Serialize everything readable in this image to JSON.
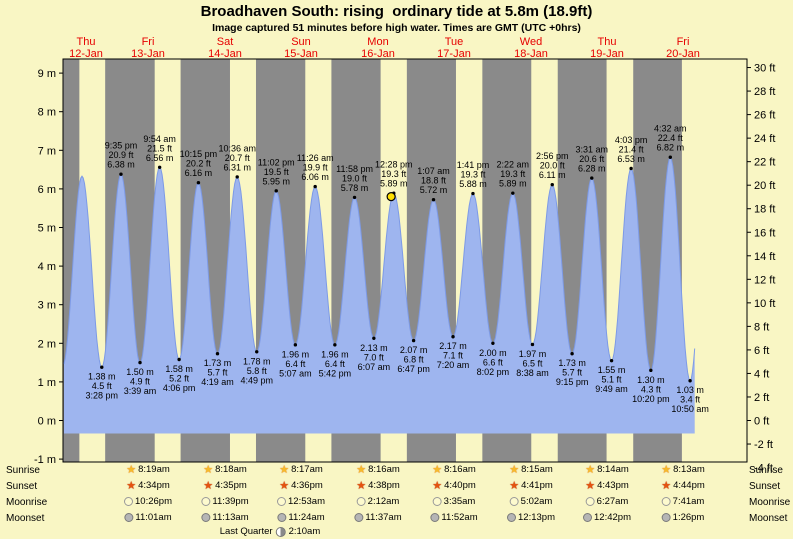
{
  "title": "Broadhaven South: rising  ordinary tide at 5.8m (18.9ft)",
  "subtitle": "Image captured 51 minutes before high water. Times are GMT (UTC +0hrs)",
  "colors": {
    "page_bg": "#f9f6c4",
    "day_band": "#f9f6c4",
    "night_band": "#8a8a8a",
    "tide_fill": "#9eb5ef",
    "tide_stroke": "#7d9ae6",
    "day_label": "#e60000",
    "current_marker": "#ffdf00"
  },
  "chart_data": {
    "type": "area",
    "title": "Broadhaven South tide height curve, Thu 12-Jan to Fri 20-Jan",
    "timezone": "GMT (UTC +0hrs)",
    "ylim": [
      -1.1,
      9.4
    ],
    "y_axis_left": {
      "unit": "m",
      "ticks": [
        9,
        8,
        7,
        6,
        5,
        4,
        3,
        2,
        1,
        0,
        -1
      ]
    },
    "y_axis_right": {
      "unit": "ft",
      "ticks": [
        30,
        28,
        26,
        24,
        22,
        20,
        18,
        16,
        14,
        12,
        10,
        8,
        6,
        4,
        2,
        0,
        -2,
        -4
      ]
    },
    "days": [
      {
        "name": "Thu",
        "date": "12-Jan"
      },
      {
        "name": "Fri",
        "date": "13-Jan"
      },
      {
        "name": "Sat",
        "date": "14-Jan"
      },
      {
        "name": "Sun",
        "date": "15-Jan"
      },
      {
        "name": "Mon",
        "date": "16-Jan"
      },
      {
        "name": "Tue",
        "date": "17-Jan"
      },
      {
        "name": "Wed",
        "date": "18-Jan"
      },
      {
        "name": "Thu",
        "date": "19-Jan"
      },
      {
        "name": "Fri",
        "date": "20-Jan"
      }
    ],
    "tide_events": [
      {
        "t": 3.05,
        "m": 1.42,
        "type": "low",
        "annotated": false
      },
      {
        "t": 9.17,
        "m": 6.33,
        "type": "high",
        "annotated": false
      },
      {
        "t": 15.47,
        "m": 1.38,
        "ft": 4.5,
        "time": "3:28 pm",
        "type": "low",
        "annotated": true
      },
      {
        "t": 21.58,
        "m": 6.38,
        "ft": 20.9,
        "time": "9:35 pm",
        "type": "high",
        "annotated": true
      },
      {
        "t": 27.65,
        "m": 1.5,
        "ft": 4.9,
        "time": "3:39 am",
        "type": "low",
        "annotated": true
      },
      {
        "t": 33.9,
        "m": 6.56,
        "ft": 21.5,
        "time": "9:54 am",
        "type": "high",
        "annotated": true
      },
      {
        "t": 40.1,
        "m": 1.58,
        "ft": 5.2,
        "time": "4:06 pm",
        "type": "low",
        "annotated": true
      },
      {
        "t": 46.25,
        "m": 6.16,
        "ft": 20.2,
        "time": "10:15 pm",
        "type": "high",
        "annotated": true
      },
      {
        "t": 52.32,
        "m": 1.73,
        "ft": 5.7,
        "time": "4:19 am",
        "type": "low",
        "annotated": true
      },
      {
        "t": 58.6,
        "m": 6.31,
        "ft": 20.7,
        "time": "10:36 am",
        "type": "high",
        "annotated": true
      },
      {
        "t": 64.82,
        "m": 1.78,
        "ft": 5.8,
        "time": "4:49 pm",
        "type": "low",
        "annotated": true
      },
      {
        "t": 71.03,
        "m": 5.95,
        "ft": 19.5,
        "time": "11:02 pm",
        "type": "high",
        "annotated": true
      },
      {
        "t": 77.12,
        "m": 1.96,
        "ft": 6.4,
        "time": "5:07 am",
        "type": "low",
        "annotated": true
      },
      {
        "t": 83.43,
        "m": 6.06,
        "ft": 19.9,
        "time": "11:26 am",
        "type": "high",
        "annotated": true
      },
      {
        "t": 89.7,
        "m": 1.96,
        "ft": 6.4,
        "time": "5:42 pm",
        "type": "low",
        "annotated": true
      },
      {
        "t": 95.97,
        "m": 5.78,
        "ft": 19.0,
        "time": "11:58 pm",
        "type": "high",
        "annotated": true
      },
      {
        "t": 102.12,
        "m": 2.13,
        "ft": 7.0,
        "time": "6:07 am",
        "type": "low",
        "annotated": true
      },
      {
        "t": 108.47,
        "m": 5.89,
        "ft": 19.3,
        "time": "12:28 pm",
        "type": "high",
        "annotated": true
      },
      {
        "t": 114.78,
        "m": 2.07,
        "ft": 6.8,
        "time": "6:47 pm",
        "type": "low",
        "annotated": true
      },
      {
        "t": 121.12,
        "m": 5.72,
        "ft": 18.8,
        "time": "1:07 am",
        "type": "high",
        "annotated": true
      },
      {
        "t": 127.33,
        "m": 2.17,
        "ft": 7.1,
        "time": "7:20 am",
        "type": "low",
        "annotated": true
      },
      {
        "t": 133.68,
        "m": 5.88,
        "ft": 19.3,
        "time": "1:41 pm",
        "type": "high",
        "annotated": true
      },
      {
        "t": 140.03,
        "m": 2.0,
        "ft": 6.6,
        "time": "8:02 pm",
        "type": "low",
        "annotated": true
      },
      {
        "t": 146.37,
        "m": 5.89,
        "ft": 19.3,
        "time": "2:22 am",
        "type": "high",
        "annotated": true
      },
      {
        "t": 152.63,
        "m": 1.97,
        "ft": 6.5,
        "time": "8:38 am",
        "type": "low",
        "annotated": true
      },
      {
        "t": 158.93,
        "m": 6.11,
        "ft": 20.0,
        "time": "2:56 pm",
        "type": "high",
        "annotated": true
      },
      {
        "t": 165.25,
        "m": 1.73,
        "ft": 5.7,
        "time": "9:15 pm",
        "type": "low",
        "annotated": true
      },
      {
        "t": 171.52,
        "m": 6.28,
        "ft": 20.6,
        "time": "3:31 am",
        "type": "high",
        "annotated": true
      },
      {
        "t": 177.82,
        "m": 1.55,
        "ft": 5.1,
        "time": "9:49 am",
        "type": "low",
        "annotated": true
      },
      {
        "t": 184.05,
        "m": 6.53,
        "ft": 21.4,
        "time": "4:03 pm",
        "type": "high",
        "annotated": true
      },
      {
        "t": 190.33,
        "m": 1.3,
        "ft": 4.3,
        "time": "10:20 pm",
        "type": "low",
        "annotated": true
      },
      {
        "t": 196.53,
        "m": 6.82,
        "ft": 22.4,
        "time": "4:32 am",
        "type": "high",
        "annotated": true
      },
      {
        "t": 202.83,
        "m": 1.03,
        "ft": 3.4,
        "time": "10:50 am",
        "type": "low",
        "annotated": true
      },
      {
        "t": 208.8,
        "m": 6.9,
        "type": "high",
        "annotated": false
      }
    ],
    "data_end_t": 204.3,
    "night_bands": [
      [
        3.12,
        8.33
      ],
      [
        16.55,
        32.32
      ],
      [
        40.57,
        56.3
      ],
      [
        64.58,
        80.28
      ],
      [
        88.6,
        104.27
      ],
      [
        112.63,
        128.27
      ],
      [
        136.67,
        152.25
      ],
      [
        160.68,
        176.23
      ],
      [
        184.72,
        200.22
      ]
    ],
    "current_marker": {
      "t": 107.62,
      "m": 5.8,
      "note": "51 minutes before high water"
    }
  },
  "astro": {
    "row_labels": [
      "Sunrise",
      "Sunset",
      "Moonrise",
      "Moonset"
    ],
    "sunrise": [
      "8:19am",
      "8:18am",
      "8:17am",
      "8:16am",
      "8:16am",
      "8:15am",
      "8:14am",
      "8:13am"
    ],
    "sunset": [
      "4:34pm",
      "4:35pm",
      "4:36pm",
      "4:38pm",
      "4:40pm",
      "4:41pm",
      "4:43pm",
      "4:44pm"
    ],
    "moonrise": [
      "10:26pm",
      "11:39pm",
      "12:53am",
      "2:12am",
      "3:35am",
      "5:02am",
      "6:27am",
      "7:41am"
    ],
    "moonset": [
      "11:01am",
      "11:13am",
      "11:24am",
      "11:37am",
      "11:52am",
      "12:13pm",
      "12:42pm",
      "1:26pm"
    ],
    "moon_phase": {
      "label": "Last Quarter",
      "time": "2:10am"
    }
  }
}
